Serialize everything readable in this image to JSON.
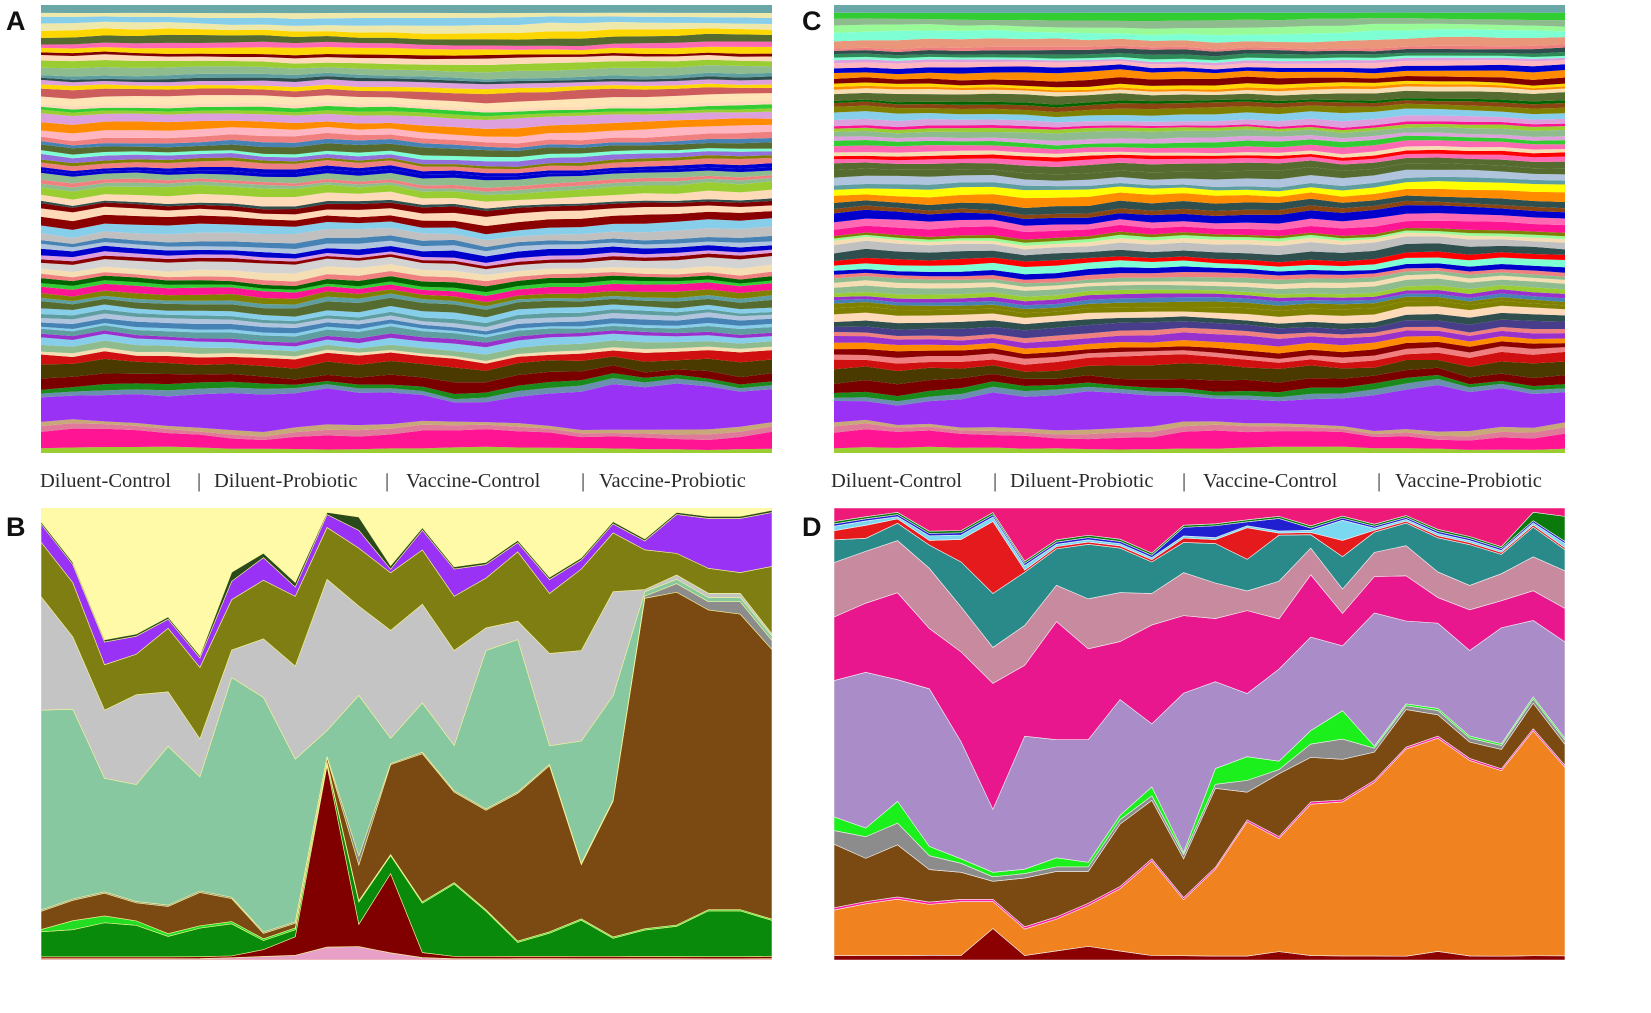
{
  "figure": {
    "panels": [
      {
        "letter": "A",
        "kind": "stream",
        "seed": 11
      },
      {
        "letter": "B",
        "kind": "area-top",
        "seed": 23
      },
      {
        "letter": "C",
        "kind": "stream",
        "seed": 37
      },
      {
        "letter": "D",
        "kind": "area-top",
        "seed": 41
      }
    ],
    "group_labels_left": [
      "Diluent-Control",
      "Diluent-Probiotic",
      "Vaccine-Control",
      "Vaccine-Probiotic"
    ],
    "group_labels_right": [
      "Diluent-Control",
      "Diluent-Probiotic",
      "Vaccine-Control",
      "Vaccine-Probiotic"
    ],
    "separator": "|"
  },
  "chart_data": [
    {
      "panel": "A",
      "type": "area",
      "title": "",
      "xlabel": "",
      "ylabel": "",
      "categories": [
        "Diluent-Control",
        "Diluent-Probiotic",
        "Vaccine-Control",
        "Vaccine-Probiotic"
      ],
      "n_samples": 24,
      "ylim": [
        0,
        1
      ],
      "stacked": true,
      "n_series": 78,
      "palette": [
        "#5f9ea0",
        "#87ceeb",
        "#dda0dd",
        "#0000cd",
        "#800000",
        "#ffe4b5",
        "#f08080",
        "#d3d3d3",
        "#9acd32",
        "#ff69b4",
        "#ffdab9",
        "#2e8b57",
        "#cd5c5c",
        "#b0c4de",
        "#f5deb3",
        "#006400",
        "#ff1493",
        "#556b2f",
        "#c0c0c0",
        "#7fffd4",
        "#ffd700",
        "#ff0000",
        "#8fbc8f",
        "#ff8c00",
        "#483d8b",
        "#eee8aa",
        "#8b0000",
        "#32cd32",
        "#ffb6c1",
        "#9370db",
        "#2f4f4f",
        "#98fb98",
        "#ffff00",
        "#808000",
        "#9932cc",
        "#8b4513",
        "#4682b4",
        "#e9967a"
      ],
      "highlight_series": [
        {
          "name": "purple",
          "color": "#9a32f5",
          "mean_share": 0.07
        },
        {
          "name": "magenta",
          "color": "#ff1493",
          "mean_share": 0.035
        },
        {
          "name": "dark-olive",
          "color": "#5c4a00",
          "mean_share": 0.04
        },
        {
          "name": "red",
          "color": "#e41a1c",
          "mean_share": 0.025
        }
      ]
    },
    {
      "panel": "B",
      "type": "area",
      "title": "",
      "xlabel": "",
      "ylabel": "",
      "n_samples": 24,
      "ylim": [
        0,
        1
      ],
      "stacked": true,
      "series_bottom_to_top": [
        {
          "name": "pink",
          "color": "#e8a0c8",
          "values": [
            0.003,
            0.003,
            0.003,
            0.003,
            0.003,
            0.003,
            0.005,
            0.008,
            0.01,
            0.03,
            0.03,
            0.02,
            0.005,
            0.003,
            0.003,
            0.003,
            0.003,
            0.003,
            0.003,
            0.003,
            0.003,
            0.003,
            0.003,
            0.003
          ]
        },
        {
          "name": "dark red",
          "color": "#800000",
          "values": [
            0.004,
            0.004,
            0.004,
            0.004,
            0.004,
            0.004,
            0.004,
            0.015,
            0.04,
            0.42,
            0.05,
            0.22,
            0.01,
            0.005,
            0.005,
            0.005,
            0.005,
            0.005,
            0.005,
            0.005,
            0.005,
            0.005,
            0.005,
            0.005
          ]
        },
        {
          "name": "green",
          "color": "#0a8a0a",
          "values": [
            0.055,
            0.06,
            0.075,
            0.07,
            0.045,
            0.06,
            0.07,
            0.02,
            0.015,
            0.005,
            0.05,
            0.05,
            0.1,
            0.16,
            0.1,
            0.03,
            0.05,
            0.08,
            0.04,
            0.06,
            0.07,
            0.11,
            0.11,
            0.08
          ]
        },
        {
          "name": "bright green",
          "color": "#22dd22",
          "values": [
            0.005,
            0.02,
            0.015,
            0.01,
            0.006,
            0.005,
            0.005,
            0.004,
            0.004,
            0.003,
            0.003,
            0.003,
            0.003,
            0.003,
            0.003,
            0.003,
            0.003,
            0.003,
            0.003,
            0.003,
            0.003,
            0.003,
            0.003,
            0.003
          ]
        },
        {
          "name": "brown",
          "color": "#7b4a12",
          "values": [
            0.04,
            0.045,
            0.05,
            0.04,
            0.06,
            0.07,
            0.05,
            0.012,
            0.01,
            0.01,
            0.08,
            0.25,
            0.3,
            0.2,
            0.22,
            0.32,
            0.36,
            0.12,
            0.3,
            0.75,
            0.77,
            0.72,
            0.71,
            0.6
          ]
        },
        {
          "name": "grey",
          "color": "#8c8c8c",
          "values": [
            0.003,
            0.003,
            0.003,
            0.003,
            0.003,
            0.003,
            0.003,
            0.003,
            0.003,
            0.003,
            0.02,
            0.003,
            0.003,
            0.003,
            0.003,
            0.003,
            0.003,
            0.003,
            0.003,
            0.005,
            0.02,
            0.02,
            0.03,
            0.02
          ]
        },
        {
          "name": "seafoam",
          "color": "#88c8a0",
          "values": [
            0.44,
            0.42,
            0.25,
            0.26,
            0.35,
            0.24,
            0.48,
            0.52,
            0.35,
            0.06,
            0.36,
            0.07,
            0.1,
            0.1,
            0.35,
            0.33,
            0.04,
            0.27,
            0.23,
            0.01,
            0.01,
            0.01,
            0.01,
            0.01
          ]
        },
        {
          "name": "light grey",
          "color": "#c4c4c4",
          "values": [
            0.25,
            0.16,
            0.15,
            0.2,
            0.12,
            0.08,
            0.06,
            0.13,
            0.2,
            0.35,
            0.2,
            0.3,
            0.2,
            0.21,
            0.05,
            0.04,
            0.2,
            0.2,
            0.23,
            0.005,
            0.01,
            0.01,
            0.01,
            0.005
          ]
        },
        {
          "name": "olive",
          "color": "#7e7e12",
          "values": [
            0.12,
            0.12,
            0.1,
            0.09,
            0.14,
            0.15,
            0.11,
            0.13,
            0.15,
            0.12,
            0.13,
            0.16,
            0.11,
            0.12,
            0.11,
            0.15,
            0.13,
            0.18,
            0.13,
            0.09,
            0.05,
            0.06,
            0.05,
            0.15
          ]
        },
        {
          "name": "purple",
          "color": "#9a32f5",
          "values": [
            0.04,
            0.04,
            0.05,
            0.04,
            0.02,
            0.02,
            0.04,
            0.05,
            0.02,
            0.03,
            0.04,
            0.01,
            0.04,
            0.06,
            0.03,
            0.02,
            0.03,
            0.02,
            0.02,
            0.02,
            0.09,
            0.12,
            0.13,
            0.12
          ]
        },
        {
          "name": "dark green",
          "color": "#2a4a1a",
          "values": [
            0.005,
            0.005,
            0.005,
            0.005,
            0.005,
            0.005,
            0.02,
            0.01,
            0.01,
            0.005,
            0.03,
            0.01,
            0.005,
            0.005,
            0.005,
            0.005,
            0.005,
            0.005,
            0.005,
            0.005,
            0.005,
            0.005,
            0.005,
            0.005
          ]
        },
        {
          "name": "pale yellow",
          "color": "#fffaa8",
          "values": [
            0.03,
            0.12,
            0.29,
            0.28,
            0.24,
            0.31,
            0.14,
            0.1,
            0.16,
            0.01,
            0.02,
            0.16,
            0.04,
            0.13,
            0.12,
            0.07,
            0.15,
            0.11,
            0.03,
            0.07,
            0.01,
            0.02,
            0.02,
            0.005
          ]
        }
      ]
    },
    {
      "panel": "C",
      "type": "area",
      "title": "",
      "xlabel": "",
      "ylabel": "",
      "categories": [
        "Diluent-Control",
        "Diluent-Probiotic",
        "Vaccine-Control",
        "Vaccine-Probiotic"
      ],
      "n_samples": 24,
      "ylim": [
        0,
        1
      ],
      "stacked": true,
      "n_series": 78,
      "highlight_series": [
        {
          "name": "purple",
          "color": "#9a32f5",
          "mean_share": 0.07
        },
        {
          "name": "magenta",
          "color": "#ff1493",
          "mean_share": 0.035
        },
        {
          "name": "dark-olive",
          "color": "#5c4a00",
          "mean_share": 0.04
        },
        {
          "name": "red",
          "color": "#e41a1c",
          "mean_share": 0.025
        }
      ]
    },
    {
      "panel": "D",
      "type": "area",
      "title": "",
      "xlabel": "",
      "ylabel": "",
      "n_samples": 24,
      "ylim": [
        0,
        1
      ],
      "stacked": true,
      "series_bottom_to_top": [
        {
          "name": "dark red",
          "color": "#8b0000",
          "values": [
            0.01,
            0.01,
            0.01,
            0.01,
            0.01,
            0.07,
            0.01,
            0.02,
            0.03,
            0.02,
            0.01,
            0.01,
            0.01,
            0.01,
            0.02,
            0.01,
            0.01,
            0.01,
            0.01,
            0.02,
            0.01,
            0.01,
            0.01,
            0.01
          ]
        },
        {
          "name": "orange",
          "color": "#f08220",
          "values": [
            0.1,
            0.12,
            0.13,
            0.11,
            0.12,
            0.06,
            0.06,
            0.07,
            0.09,
            0.14,
            0.21,
            0.13,
            0.22,
            0.34,
            0.27,
            0.34,
            0.38,
            0.43,
            0.55,
            0.5,
            0.48,
            0.48,
            0.53,
            0.45
          ]
        },
        {
          "name": "magenta line",
          "color": "#ff1ca0",
          "values": [
            0.005,
            0.005,
            0.005,
            0.005,
            0.005,
            0.005,
            0.005,
            0.005,
            0.005,
            0.005,
            0.005,
            0.005,
            0.005,
            0.005,
            0.005,
            0.005,
            0.005,
            0.005,
            0.005,
            0.005,
            0.005,
            0.005,
            0.005,
            0.005
          ]
        },
        {
          "name": "brown",
          "color": "#7b4a12",
          "values": [
            0.14,
            0.1,
            0.12,
            0.07,
            0.06,
            0.04,
            0.11,
            0.1,
            0.07,
            0.14,
            0.13,
            0.09,
            0.2,
            0.07,
            0.15,
            0.1,
            0.1,
            0.07,
            0.1,
            0.05,
            0.04,
            0.05,
            0.06,
            0.05
          ]
        },
        {
          "name": "grey",
          "color": "#8c8c8c",
          "values": [
            0.03,
            0.05,
            0.05,
            0.03,
            0.02,
            0.01,
            0.01,
            0.01,
            0.01,
            0.01,
            0.01,
            0.01,
            0.01,
            0.03,
            0.01,
            0.03,
            0.05,
            0.01,
            0.01,
            0.01,
            0.01,
            0.01,
            0.01,
            0.01
          ]
        },
        {
          "name": "bright green",
          "color": "#1cf01c",
          "values": [
            0.03,
            0.02,
            0.05,
            0.02,
            0.01,
            0.01,
            0.01,
            0.02,
            0.01,
            0.01,
            0.02,
            0.005,
            0.04,
            0.06,
            0.02,
            0.03,
            0.07,
            0.005,
            0.005,
            0.005,
            0.005,
            0.005,
            0.005,
            0.005
          ]
        },
        {
          "name": "lavender",
          "color": "#a98cc8",
          "values": [
            0.3,
            0.36,
            0.28,
            0.34,
            0.26,
            0.14,
            0.3,
            0.26,
            0.27,
            0.26,
            0.14,
            0.37,
            0.22,
            0.16,
            0.22,
            0.21,
            0.16,
            0.33,
            0.22,
            0.2,
            0.21,
            0.3,
            0.18,
            0.23
          ]
        },
        {
          "name": "pink",
          "color": "#e8178e",
          "values": [
            0.14,
            0.16,
            0.2,
            0.13,
            0.2,
            0.28,
            0.16,
            0.26,
            0.2,
            0.13,
            0.22,
            0.18,
            0.16,
            0.21,
            0.12,
            0.14,
            0.08,
            0.09,
            0.12,
            0.06,
            0.1,
            0.07,
            0.07,
            0.08
          ]
        },
        {
          "name": "rosy",
          "color": "#c78a9e",
          "values": [
            0.12,
            0.12,
            0.12,
            0.13,
            0.1,
            0.08,
            0.09,
            0.08,
            0.11,
            0.11,
            0.07,
            0.1,
            0.09,
            0.05,
            0.09,
            0.06,
            0.06,
            0.06,
            0.08,
            0.06,
            0.06,
            0.07,
            0.08,
            0.09
          ]
        },
        {
          "name": "teal",
          "color": "#2a8a8a",
          "values": [
            0.05,
            0.03,
            0.04,
            0.05,
            0.1,
            0.12,
            0.12,
            0.08,
            0.12,
            0.1,
            0.07,
            0.07,
            0.1,
            0.08,
            0.11,
            0.03,
            0.08,
            0.05,
            0.06,
            0.08,
            0.1,
            0.05,
            0.07,
            0.05
          ]
        },
        {
          "name": "red",
          "color": "#e41a1c",
          "values": [
            0.02,
            0.03,
            0.01,
            0.01,
            0.05,
            0.16,
            0.005,
            0.005,
            0.005,
            0.005,
            0.005,
            0.01,
            0.01,
            0.08,
            0.005,
            0.005,
            0.04,
            0.005,
            0.005,
            0.005,
            0.005,
            0.005,
            0.005,
            0.005
          ]
        },
        {
          "name": "cyan",
          "color": "#7ad8f0",
          "values": [
            0.01,
            0.01,
            0.005,
            0.01,
            0.01,
            0.01,
            0.01,
            0.005,
            0.005,
            0.005,
            0.005,
            0.005,
            0.005,
            0.005,
            0.005,
            0.005,
            0.05,
            0.005,
            0.005,
            0.005,
            0.005,
            0.005,
            0.005,
            0.01
          ]
        },
        {
          "name": "blue",
          "color": "#2020d0",
          "values": [
            0.005,
            0.005,
            0.005,
            0.005,
            0.005,
            0.005,
            0.005,
            0.005,
            0.005,
            0.005,
            0.005,
            0.02,
            0.03,
            0.01,
            0.03,
            0.005,
            0.005,
            0.005,
            0.005,
            0.005,
            0.005,
            0.005,
            0.005,
            0.005
          ]
        },
        {
          "name": "dark green",
          "color": "#0a7a0a",
          "values": [
            0.005,
            0.005,
            0.005,
            0.005,
            0.005,
            0.005,
            0.005,
            0.005,
            0.005,
            0.005,
            0.005,
            0.005,
            0.005,
            0.005,
            0.005,
            0.005,
            0.005,
            0.005,
            0.005,
            0.005,
            0.005,
            0.005,
            0.02,
            0.06
          ]
        },
        {
          "name": "hot pink",
          "color": "#ee1a7a",
          "values": [
            0.03,
            0.02,
            0.01,
            0.05,
            0.05,
            0.01,
            0.12,
            0.07,
            0.06,
            0.07,
            0.1,
            0.04,
            0.04,
            0.03,
            0.02,
            0.04,
            0.02,
            0.04,
            0.02,
            0.05,
            0.07,
            0.1,
            0.01,
            0.02
          ]
        }
      ]
    }
  ]
}
